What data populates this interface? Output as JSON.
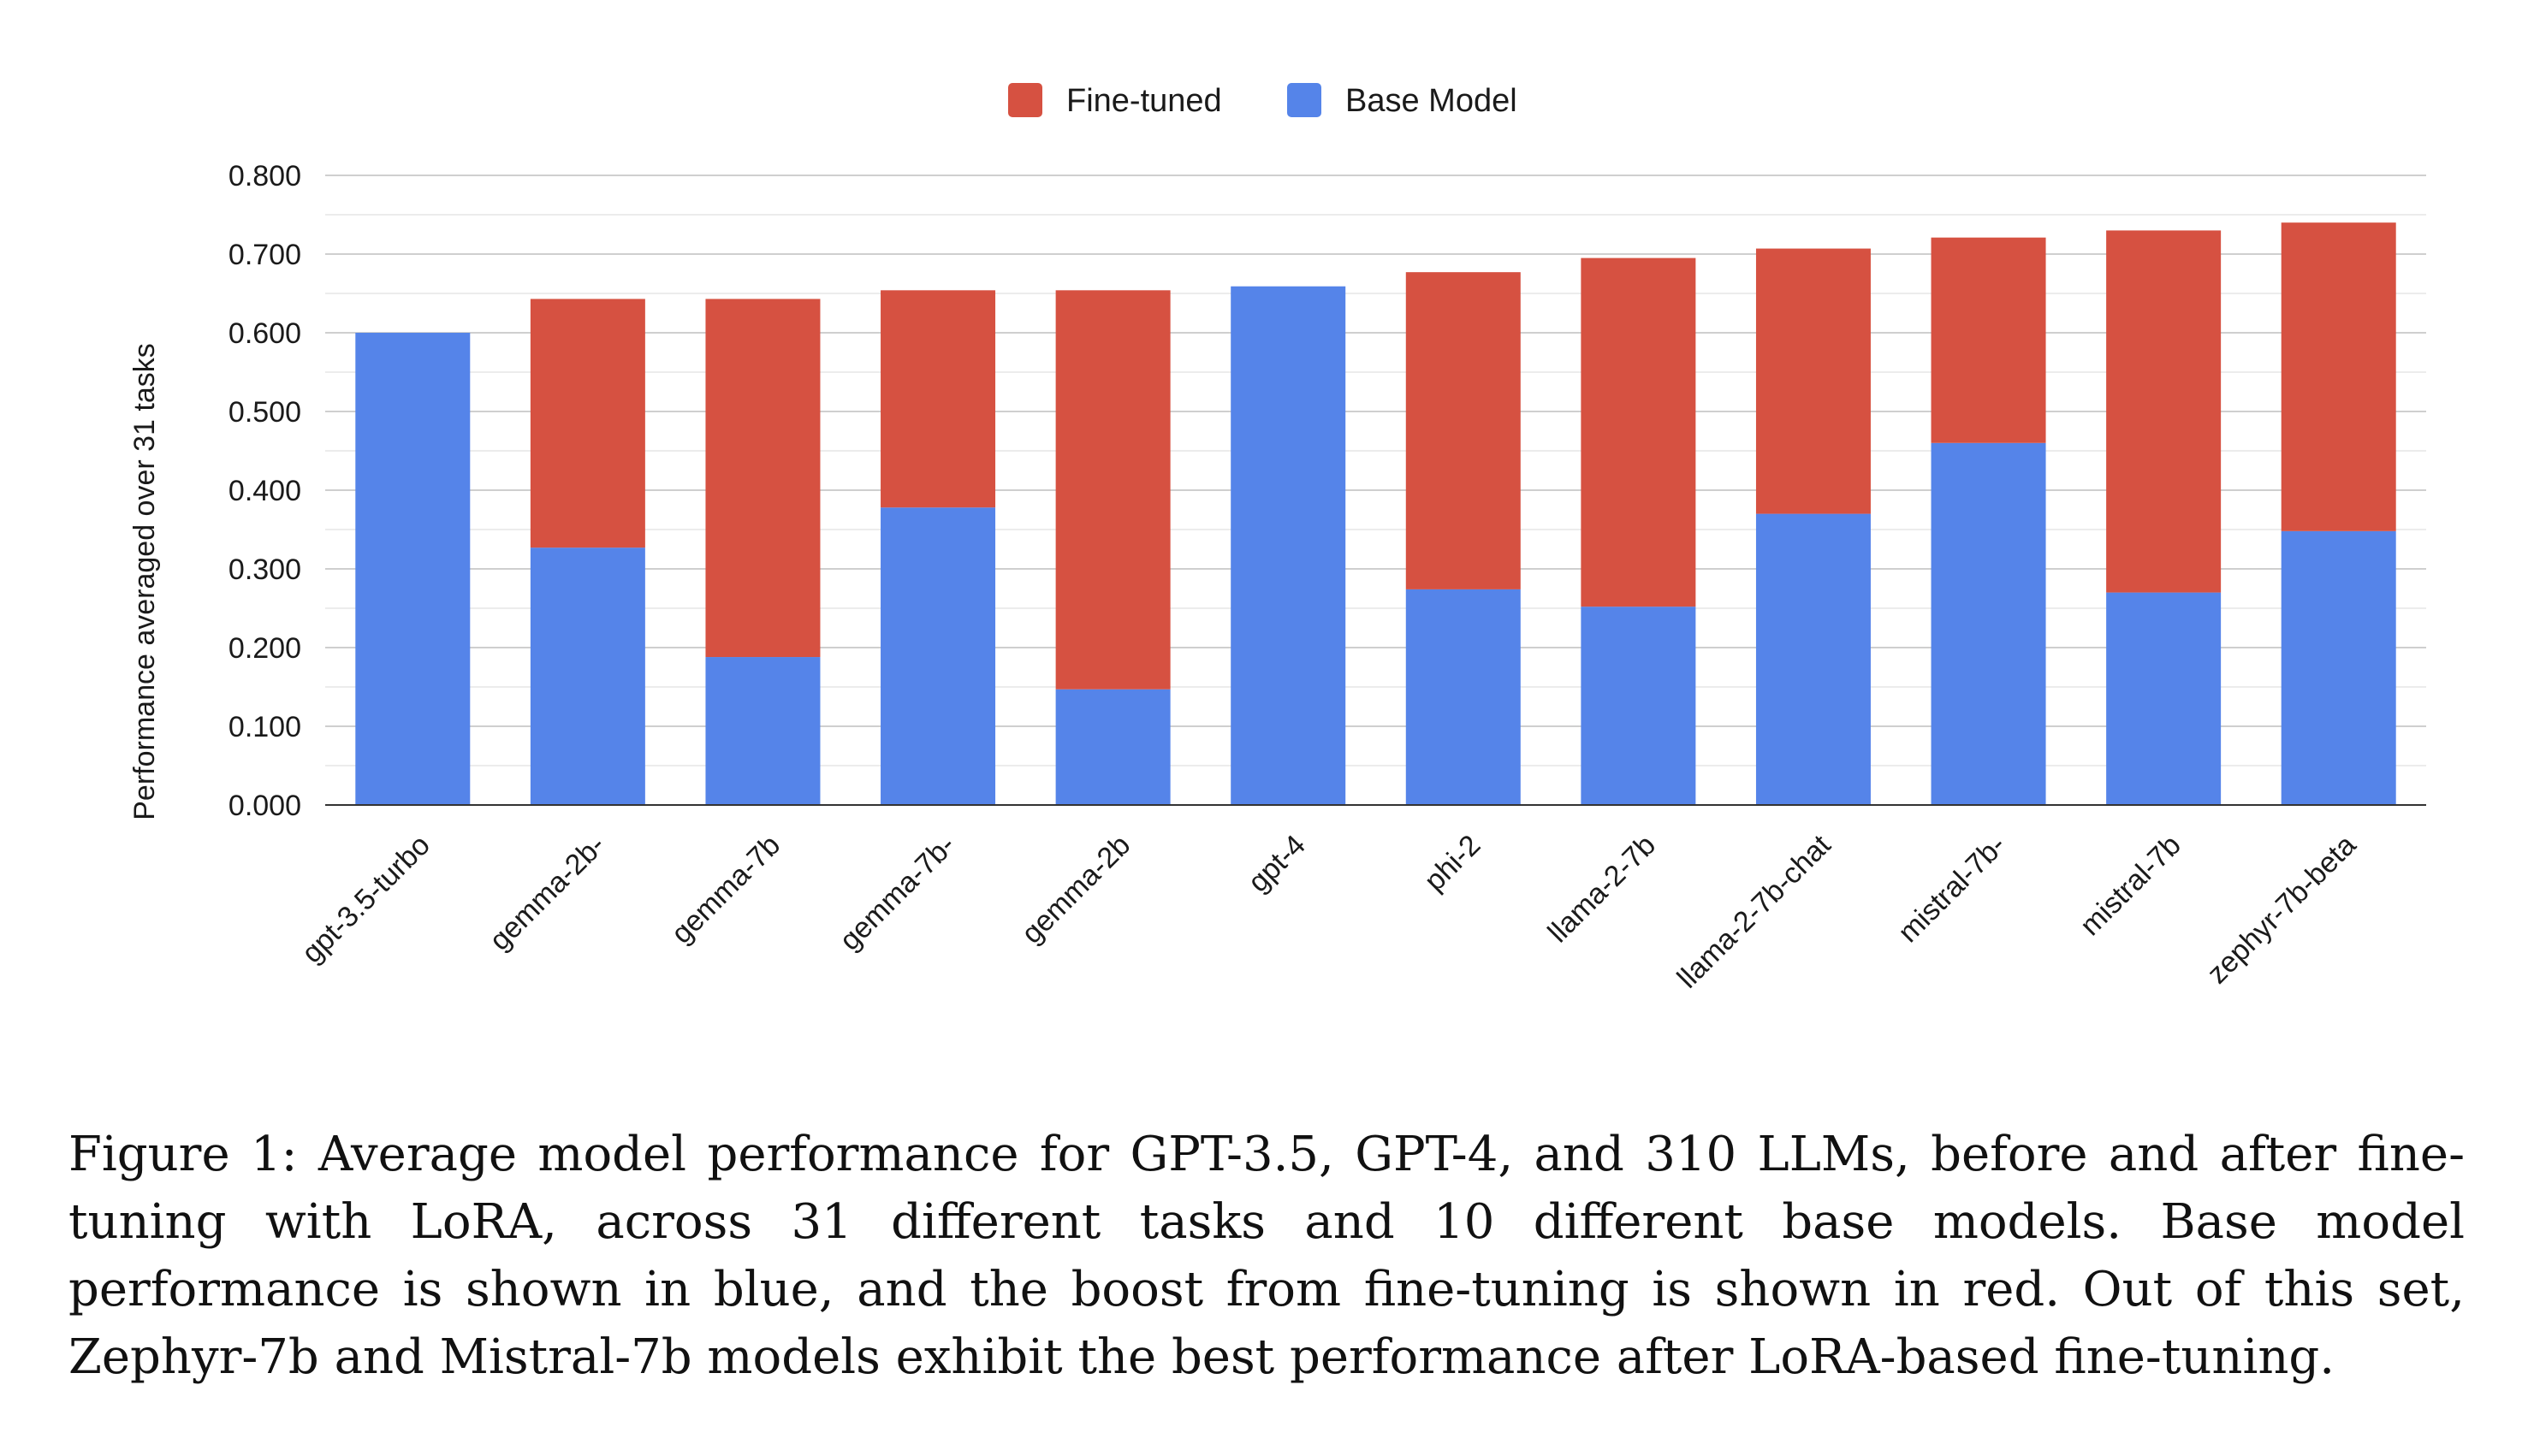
{
  "chart_data": {
    "type": "bar",
    "stacked": true,
    "title": "",
    "xlabel": "",
    "ylabel": "Performance averaged over 31 tasks",
    "ylim": [
      0,
      0.8
    ],
    "yticks": [
      "0.000",
      "0.100",
      "0.200",
      "0.300",
      "0.400",
      "0.500",
      "0.600",
      "0.700",
      "0.800"
    ],
    "ytick_values": [
      0,
      0.1,
      0.2,
      0.3,
      0.4,
      0.5,
      0.6,
      0.7,
      0.8
    ],
    "minor_gridlines": true,
    "legend_position": "top-center",
    "categories": [
      "gpt-3.5-turbo",
      "gemma-2b-",
      "gemma-7b",
      "gemma-7b-",
      "gemma-2b",
      "gpt-4",
      "phi-2",
      "llama-2-7b",
      "llama-2-7b-chat",
      "mistral-7b-",
      "mistral-7b",
      "zephyr-7b-beta"
    ],
    "series": [
      {
        "name": "Base Model",
        "color": "#5584e9",
        "values": [
          0.6,
          0.327,
          0.188,
          0.378,
          0.147,
          0.659,
          0.274,
          0.252,
          0.37,
          0.46,
          0.27,
          0.348
        ]
      },
      {
        "name": "Fine-tuned",
        "color": "#d65141",
        "values": [
          0.0,
          0.316,
          0.455,
          0.276,
          0.507,
          0.0,
          0.403,
          0.443,
          0.337,
          0.261,
          0.46,
          0.392
        ]
      }
    ],
    "legend": [
      "Fine-tuned",
      "Base Model"
    ]
  },
  "caption": "Figure 1: Average model performance for GPT-3.5, GPT-4, and 310 LLMs, before and after fine-tuning with LoRA, across 31 different tasks and 10 different base models. Base model performance is shown in blue, and the boost from fine-tuning is shown in red. Out of this set, Zephyr-7b and Mistral-7b models exhibit the best performance after LoRA-based fine-tuning."
}
